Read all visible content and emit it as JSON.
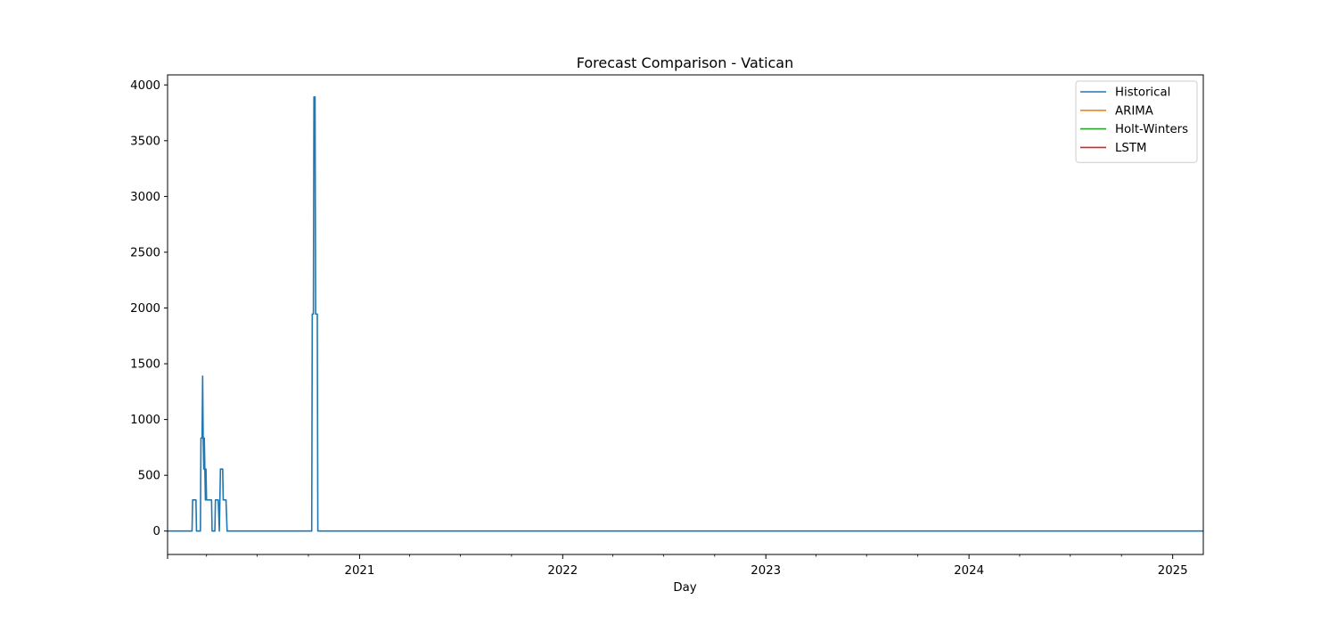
{
  "chart_data": {
    "type": "line",
    "title": "Forecast Comparison - Vatican",
    "xlabel": "Day",
    "ylabel": "",
    "xlim": [
      "2020-01-22",
      "2025-02-25"
    ],
    "ylim": [
      -210,
      4090
    ],
    "x_ticks": [
      "2021",
      "2022",
      "2023",
      "2024",
      "2025"
    ],
    "y_ticks": [
      0,
      500,
      1000,
      1500,
      2000,
      2500,
      3000,
      3500,
      4000
    ],
    "grid": false,
    "legend_position": "top-right",
    "legend": [
      "Historical",
      "ARIMA",
      "Holt-Winters",
      "LSTM"
    ],
    "series": [
      {
        "name": "Historical",
        "color": "#1f77b4",
        "points": [
          [
            "2020-01-22",
            0
          ],
          [
            "2020-03-06",
            0
          ],
          [
            "2020-03-07",
            279
          ],
          [
            "2020-03-13",
            279
          ],
          [
            "2020-03-14",
            0
          ],
          [
            "2020-03-21",
            0
          ],
          [
            "2020-03-22",
            834
          ],
          [
            "2020-03-24",
            834
          ],
          [
            "2020-03-25",
            1389
          ],
          [
            "2020-03-26",
            834
          ],
          [
            "2020-03-27",
            556
          ],
          [
            "2020-03-28",
            834
          ],
          [
            "2020-03-29",
            556
          ],
          [
            "2020-03-30",
            279
          ],
          [
            "2020-03-31",
            556
          ],
          [
            "2020-04-01",
            279
          ],
          [
            "2020-04-10",
            279
          ],
          [
            "2020-04-11",
            0
          ],
          [
            "2020-04-16",
            0
          ],
          [
            "2020-04-17",
            279
          ],
          [
            "2020-04-22",
            279
          ],
          [
            "2020-04-24",
            0
          ],
          [
            "2020-04-25",
            279
          ],
          [
            "2020-04-26",
            556
          ],
          [
            "2020-04-30",
            556
          ],
          [
            "2020-05-01",
            279
          ],
          [
            "2020-05-06",
            279
          ],
          [
            "2020-05-08",
            0
          ],
          [
            "2020-10-07",
            0
          ],
          [
            "2020-10-08",
            1946
          ],
          [
            "2020-10-10",
            1946
          ],
          [
            "2020-10-11",
            3892
          ],
          [
            "2020-10-13",
            3892
          ],
          [
            "2020-10-14",
            1946
          ],
          [
            "2020-10-17",
            1946
          ],
          [
            "2020-10-18",
            0
          ],
          [
            "2025-02-25",
            0
          ]
        ]
      },
      {
        "name": "ARIMA",
        "color": "#ff7f0e",
        "points": []
      },
      {
        "name": "Holt-Winters",
        "color": "#2ca02c",
        "points": []
      },
      {
        "name": "LSTM",
        "color": "#d62728",
        "points": []
      }
    ]
  }
}
